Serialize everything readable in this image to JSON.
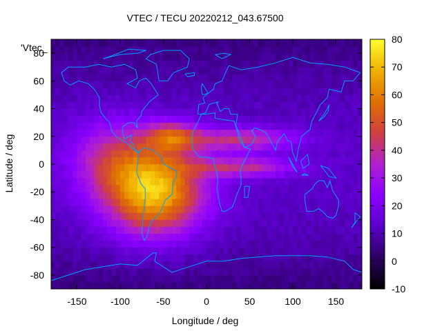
{
  "chart_data": {
    "type": "heatmap",
    "title": "VTEC / TECU 20220212_043.67500",
    "xlabel": "Longitude / deg",
    "ylabel": "Latitude / deg",
    "xlim": [
      -180,
      180
    ],
    "ylim": [
      -90,
      90
    ],
    "x_ticks": [
      -150,
      -100,
      -50,
      0,
      50,
      100,
      150
    ],
    "y_ticks": [
      -80,
      -60,
      -40,
      -20,
      0,
      20,
      40,
      60,
      80
    ],
    "colorbar": {
      "range": [
        -10,
        80
      ],
      "ticks": [
        -10,
        0,
        10,
        20,
        30,
        40,
        50,
        60,
        70,
        80
      ]
    },
    "legend_text": "'Vtec_",
    "description_note": "Vertical total electron content map; enhancement over South America and tropical Atlantic",
    "tec_sources": [
      {
        "lon": -60,
        "lat": -20,
        "sx": 40,
        "sy": 22,
        "amp": 58
      },
      {
        "lon": -40,
        "lat": 20,
        "sx": 22,
        "sy": 8,
        "amp": 30
      },
      {
        "lon": 40,
        "lat": 18,
        "sx": 45,
        "sy": 6,
        "amp": 28
      },
      {
        "lon": 40,
        "lat": -2,
        "sx": 45,
        "sy": 5,
        "amp": 26
      },
      {
        "lon": -110,
        "lat": 5,
        "sx": 35,
        "sy": 20,
        "amp": 22
      }
    ],
    "background_tec": 13,
    "polar_tec": 7
  },
  "colors": {
    "coast": "#00a0ff",
    "palette": [
      "#000000",
      "#2a0060",
      "#5a00c8",
      "#8a00ff",
      "#b020d0",
      "#d04040",
      "#e07000",
      "#f0b000",
      "#ffff30"
    ]
  }
}
